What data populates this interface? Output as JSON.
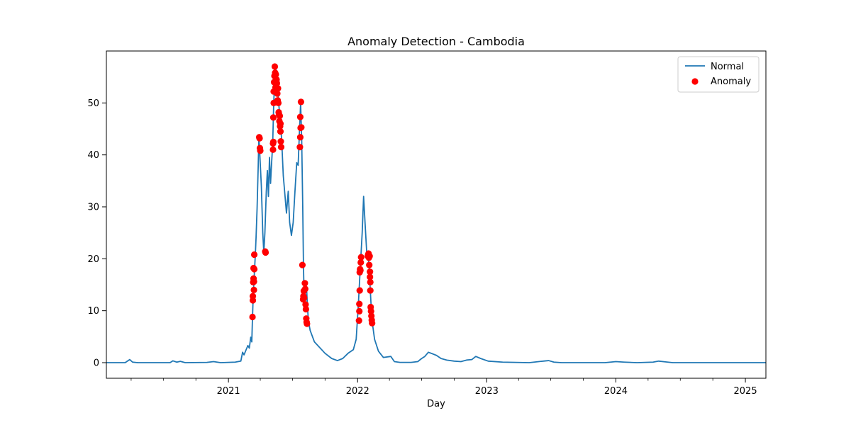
{
  "chart_data": {
    "type": "line",
    "title": "Anomaly Detection - Cambodia",
    "xlabel": "Day",
    "ylabel": "",
    "x_range": [
      "2020-01-22",
      "2025-02-28"
    ],
    "ylim": [
      -3,
      60
    ],
    "x_ticks": [
      {
        "date": "2021-01-01",
        "label": "2021"
      },
      {
        "date": "2022-01-01",
        "label": "2022"
      },
      {
        "date": "2023-01-01",
        "label": "2023"
      },
      {
        "date": "2024-01-01",
        "label": "2024"
      },
      {
        "date": "2025-01-01",
        "label": "2025"
      }
    ],
    "y_ticks": [
      0,
      10,
      20,
      30,
      40,
      50
    ],
    "grid": false,
    "legend": {
      "position": "top-right",
      "entries": [
        "Normal",
        "Anomaly"
      ]
    },
    "series": [
      {
        "name": "Normal",
        "kind": "line",
        "color": "#1f77b4",
        "points": [
          [
            "2020-01-22",
            0
          ],
          [
            "2020-03-15",
            0
          ],
          [
            "2020-03-28",
            0.6
          ],
          [
            "2020-04-05",
            0.1
          ],
          [
            "2020-04-20",
            0
          ],
          [
            "2020-07-20",
            0
          ],
          [
            "2020-07-28",
            0.35
          ],
          [
            "2020-08-08",
            0.1
          ],
          [
            "2020-08-18",
            0.25
          ],
          [
            "2020-09-01",
            0
          ],
          [
            "2020-11-01",
            0.05
          ],
          [
            "2020-11-20",
            0.2
          ],
          [
            "2020-12-10",
            0
          ],
          [
            "2021-01-20",
            0.1
          ],
          [
            "2021-02-05",
            0.3
          ],
          [
            "2021-02-10",
            2.0
          ],
          [
            "2021-02-14",
            1.5
          ],
          [
            "2021-02-20",
            2.5
          ],
          [
            "2021-02-25",
            3.3
          ],
          [
            "2021-03-01",
            2.8
          ],
          [
            "2021-03-05",
            4.9
          ],
          [
            "2021-03-08",
            4.0
          ],
          [
            "2021-03-10",
            8.8
          ],
          [
            "2021-03-12",
            12.8
          ],
          [
            "2021-03-14",
            15.5
          ],
          [
            "2021-03-16",
            18.2
          ],
          [
            "2021-03-18",
            20.8
          ],
          [
            "2021-03-20",
            24.0
          ],
          [
            "2021-03-23",
            29.8
          ],
          [
            "2021-03-26",
            37.5
          ],
          [
            "2021-03-28",
            43.4
          ],
          [
            "2021-03-30",
            41.0
          ],
          [
            "2021-04-04",
            34.0
          ],
          [
            "2021-04-08",
            25.0
          ],
          [
            "2021-04-11",
            21.2
          ],
          [
            "2021-04-14",
            25.0
          ],
          [
            "2021-04-18",
            33.0
          ],
          [
            "2021-04-21",
            37.0
          ],
          [
            "2021-04-24",
            32.0
          ],
          [
            "2021-04-27",
            39.5
          ],
          [
            "2021-04-30",
            34.5
          ],
          [
            "2021-05-03",
            38.5
          ],
          [
            "2021-05-06",
            42.0
          ],
          [
            "2021-05-09",
            50.0
          ],
          [
            "2021-05-12",
            55.5
          ],
          [
            "2021-05-14",
            57.0
          ],
          [
            "2021-05-17",
            55.5
          ],
          [
            "2021-05-20",
            53.0
          ],
          [
            "2021-05-23",
            50.0
          ],
          [
            "2021-05-26",
            47.5
          ],
          [
            "2021-05-29",
            45.5
          ],
          [
            "2021-06-01",
            42.0
          ],
          [
            "2021-06-05",
            36.0
          ],
          [
            "2021-06-10",
            32.0
          ],
          [
            "2021-06-14",
            28.8
          ],
          [
            "2021-06-19",
            33.0
          ],
          [
            "2021-06-23",
            27.0
          ],
          [
            "2021-06-28",
            24.5
          ],
          [
            "2021-07-03",
            27.0
          ],
          [
            "2021-07-08",
            33.0
          ],
          [
            "2021-07-13",
            38.5
          ],
          [
            "2021-07-17",
            38.0
          ],
          [
            "2021-07-21",
            45.0
          ],
          [
            "2021-07-24",
            50.0
          ],
          [
            "2021-07-27",
            43.0
          ],
          [
            "2021-07-30",
            30.0
          ],
          [
            "2021-08-01",
            18.8
          ],
          [
            "2021-08-03",
            12.2
          ],
          [
            "2021-08-05",
            13.0
          ],
          [
            "2021-08-08",
            15.3
          ],
          [
            "2021-08-10",
            14.2
          ],
          [
            "2021-08-12",
            11.2
          ],
          [
            "2021-08-15",
            8.0
          ],
          [
            "2021-08-20",
            6.2
          ],
          [
            "2021-09-01",
            4.0
          ],
          [
            "2021-10-01",
            1.8
          ],
          [
            "2021-10-20",
            0.8
          ],
          [
            "2021-11-05",
            0.4
          ],
          [
            "2021-11-20",
            0.8
          ],
          [
            "2021-12-05",
            1.8
          ],
          [
            "2021-12-20",
            2.5
          ],
          [
            "2021-12-28",
            4.5
          ],
          [
            "2022-01-03",
            11.0
          ],
          [
            "2022-01-08",
            17.5
          ],
          [
            "2022-01-14",
            25.0
          ],
          [
            "2022-01-18",
            32.0
          ],
          [
            "2022-01-22",
            27.0
          ],
          [
            "2022-01-27",
            21.0
          ],
          [
            "2022-01-31",
            20.5
          ],
          [
            "2022-02-03",
            18.0
          ],
          [
            "2022-02-06",
            13.8
          ],
          [
            "2022-02-09",
            10.0
          ],
          [
            "2022-02-12",
            7.5
          ],
          [
            "2022-02-18",
            4.5
          ],
          [
            "2022-03-01",
            2.2
          ],
          [
            "2022-03-15",
            1.0
          ],
          [
            "2022-04-05",
            1.2
          ],
          [
            "2022-04-15",
            0.2
          ],
          [
            "2022-05-01",
            0.05
          ],
          [
            "2022-06-01",
            0.05
          ],
          [
            "2022-06-20",
            0.2
          ],
          [
            "2022-07-01",
            0.8
          ],
          [
            "2022-07-10",
            1.2
          ],
          [
            "2022-07-20",
            2.0
          ],
          [
            "2022-08-01",
            1.7
          ],
          [
            "2022-08-12",
            1.4
          ],
          [
            "2022-08-25",
            0.8
          ],
          [
            "2022-09-10",
            0.5
          ],
          [
            "2022-10-01",
            0.3
          ],
          [
            "2022-10-20",
            0.2
          ],
          [
            "2022-11-05",
            0.5
          ],
          [
            "2022-11-20",
            0.6
          ],
          [
            "2022-12-01",
            1.2
          ],
          [
            "2022-12-15",
            0.8
          ],
          [
            "2023-01-05",
            0.3
          ],
          [
            "2023-02-15",
            0.1
          ],
          [
            "2023-05-01",
            0
          ],
          [
            "2023-06-10",
            0.3
          ],
          [
            "2023-06-25",
            0.4
          ],
          [
            "2023-07-10",
            0.1
          ],
          [
            "2023-08-01",
            0
          ],
          [
            "2023-12-01",
            0
          ],
          [
            "2024-01-01",
            0.2
          ],
          [
            "2024-01-25",
            0.1
          ],
          [
            "2024-03-01",
            0
          ],
          [
            "2024-04-15",
            0.1
          ],
          [
            "2024-05-01",
            0.3
          ],
          [
            "2024-05-20",
            0.15
          ],
          [
            "2024-06-10",
            0
          ],
          [
            "2025-02-28",
            0
          ]
        ]
      },
      {
        "name": "Anomaly",
        "kind": "scatter",
        "color": "#ff0000",
        "points": [
          [
            "2021-03-10",
            8.8
          ],
          [
            "2021-03-11",
            12.0
          ],
          [
            "2021-03-11",
            12.8
          ],
          [
            "2021-03-12",
            15.5
          ],
          [
            "2021-03-13",
            16.2
          ],
          [
            "2021-03-13",
            18.2
          ],
          [
            "2021-03-14",
            14.0
          ],
          [
            "2021-03-14",
            15.6
          ],
          [
            "2021-03-15",
            18.0
          ],
          [
            "2021-03-15",
            20.8
          ],
          [
            "2021-03-29",
            43.4
          ],
          [
            "2021-03-30",
            43.2
          ],
          [
            "2021-03-31",
            41.3
          ],
          [
            "2021-04-01",
            40.8
          ],
          [
            "2021-04-15",
            21.4
          ],
          [
            "2021-04-16",
            21.2
          ],
          [
            "2021-05-07",
            41.0
          ],
          [
            "2021-05-07",
            42.2
          ],
          [
            "2021-05-08",
            42.5
          ],
          [
            "2021-05-08",
            47.2
          ],
          [
            "2021-05-09",
            50.0
          ],
          [
            "2021-05-09",
            52.2
          ],
          [
            "2021-05-10",
            54.0
          ],
          [
            "2021-05-11",
            55.2
          ],
          [
            "2021-05-12",
            57.0
          ],
          [
            "2021-05-13",
            55.8
          ],
          [
            "2021-05-14",
            53.0
          ],
          [
            "2021-05-15",
            55.5
          ],
          [
            "2021-05-16",
            52.5
          ],
          [
            "2021-05-17",
            54.5
          ],
          [
            "2021-05-18",
            53.8
          ],
          [
            "2021-05-19",
            51.8
          ],
          [
            "2021-05-20",
            50.5
          ],
          [
            "2021-05-21",
            52.8
          ],
          [
            "2021-05-22",
            50.0
          ],
          [
            "2021-05-23",
            48.2
          ],
          [
            "2021-05-24",
            47.8
          ],
          [
            "2021-05-25",
            46.5
          ],
          [
            "2021-05-26",
            47.5
          ],
          [
            "2021-05-27",
            45.5
          ],
          [
            "2021-05-28",
            44.5
          ],
          [
            "2021-05-28",
            46.0
          ],
          [
            "2021-05-29",
            42.6
          ],
          [
            "2021-05-30",
            41.5
          ],
          [
            "2021-07-22",
            41.5
          ],
          [
            "2021-07-23",
            43.4
          ],
          [
            "2021-07-23",
            47.3
          ],
          [
            "2021-07-24",
            45.2
          ],
          [
            "2021-07-25",
            50.2
          ],
          [
            "2021-07-26",
            45.3
          ],
          [
            "2021-07-29",
            18.8
          ],
          [
            "2021-07-31",
            12.2
          ],
          [
            "2021-08-01",
            12.8
          ],
          [
            "2021-08-02",
            13.8
          ],
          [
            "2021-08-03",
            12.5
          ],
          [
            "2021-08-05",
            15.3
          ],
          [
            "2021-08-06",
            14.2
          ],
          [
            "2021-08-07",
            11.2
          ],
          [
            "2021-08-08",
            10.3
          ],
          [
            "2021-08-09",
            8.5
          ],
          [
            "2021-08-10",
            7.8
          ],
          [
            "2021-08-11",
            7.5
          ],
          [
            "2022-01-05",
            8.1
          ],
          [
            "2022-01-06",
            9.9
          ],
          [
            "2022-01-06",
            11.3
          ],
          [
            "2022-01-07",
            13.9
          ],
          [
            "2022-01-07",
            17.4
          ],
          [
            "2022-01-08",
            18.0
          ],
          [
            "2022-01-09",
            17.8
          ],
          [
            "2022-01-10",
            19.3
          ],
          [
            "2022-01-11",
            20.3
          ],
          [
            "2022-01-30",
            20.5
          ],
          [
            "2022-01-31",
            20.8
          ],
          [
            "2022-02-01",
            21.0
          ],
          [
            "2022-02-02",
            20.2
          ],
          [
            "2022-02-03",
            18.8
          ],
          [
            "2022-02-04",
            20.5
          ],
          [
            "2022-02-05",
            17.5
          ],
          [
            "2022-02-05",
            16.5
          ],
          [
            "2022-02-06",
            15.5
          ],
          [
            "2022-02-06",
            13.9
          ],
          [
            "2022-02-07",
            10.7
          ],
          [
            "2022-02-08",
            9.9
          ],
          [
            "2022-02-09",
            9.0
          ],
          [
            "2022-02-10",
            8.2
          ],
          [
            "2022-02-11",
            7.6
          ]
        ]
      }
    ]
  }
}
